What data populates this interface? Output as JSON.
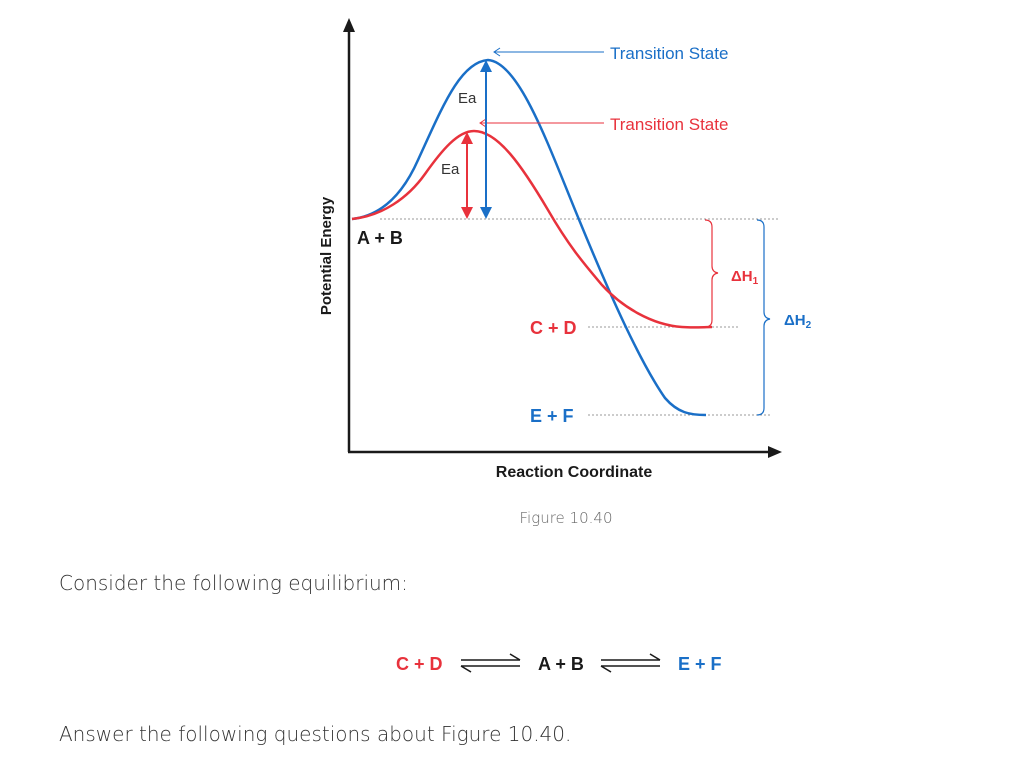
{
  "diagram": {
    "y_axis_label": "Potential Energy",
    "x_axis_label": "Reaction Coordinate",
    "reactants": "A + B",
    "products_red": "C + D",
    "products_blue": "E + F",
    "ts_blue": "Transition State",
    "ts_red": "Transition State",
    "ea_blue": "Ea",
    "ea_red": "Ea",
    "dh1": "ΔH",
    "dh1_sub": "1",
    "dh2": "ΔH",
    "dh2_sub": "2",
    "colors": {
      "red": "#e8323c",
      "blue": "#1a6fc7",
      "axis": "#1a1a1a"
    }
  },
  "caption": "Figure 10.40",
  "intro_text": "Consider the following equilibrium:",
  "equilibrium": {
    "left": "C + D",
    "middle": "A + B",
    "right": "E + F"
  },
  "question_text": "Answer the following questions about Figure 10.40."
}
